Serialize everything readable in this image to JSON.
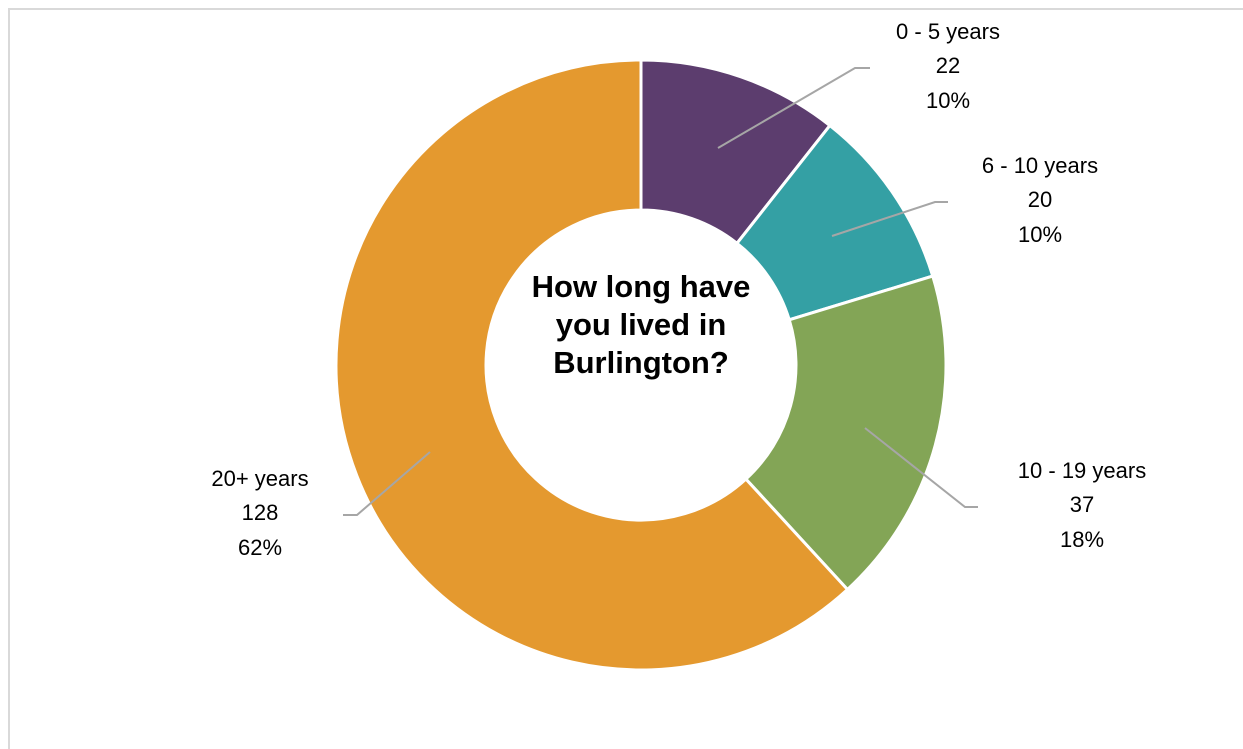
{
  "chart_data": {
    "type": "donut",
    "title": "How long have you lived in Burlington?",
    "categories": [
      "0 - 5 years",
      "6 - 10 years",
      "10 - 19 years",
      "20+ years"
    ],
    "values": [
      22,
      20,
      37,
      128
    ],
    "percent_labels": [
      "10%",
      "10%",
      "18%",
      "62%"
    ],
    "colors": [
      "#5c3d6e",
      "#34a0a4",
      "#83a556",
      "#e4992f"
    ]
  }
}
